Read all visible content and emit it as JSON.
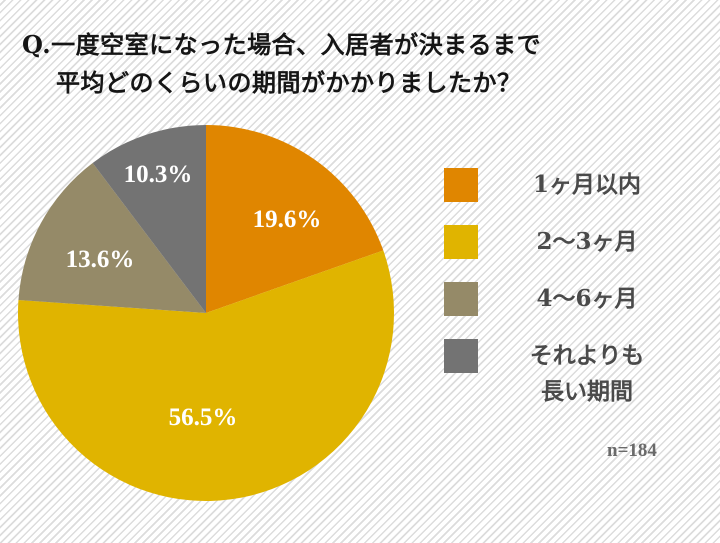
{
  "title": {
    "line1": "Q.一度空室になった場合、入居者が決まるまで",
    "line2": "平均どのくらいの期間がかかりましたか？"
  },
  "legend": [
    {
      "label": "1ヶ月以内",
      "color": "#E08600"
    },
    {
      "label": "2〜3ヶ月",
      "color": "#E0B400"
    },
    {
      "label": "4〜6ヶ月",
      "color": "#958A68"
    },
    {
      "label_line1": "それよりも",
      "label_line2": "長い期間",
      "color": "#737373"
    }
  ],
  "slice_labels": [
    "19.6%",
    "56.5%",
    "13.6%",
    "10.3%"
  ],
  "sample_note": "n=184",
  "chart_data": {
    "type": "pie",
    "title": "Q.一度空室になった場合、入居者が決まるまで平均どのくらいの期間がかかりましたか？",
    "categories": [
      "1ヶ月以内",
      "2〜3ヶ月",
      "4〜6ヶ月",
      "それよりも長い期間"
    ],
    "values": [
      19.6,
      56.5,
      13.6,
      10.3
    ],
    "unit": "%",
    "colors": [
      "#E08600",
      "#E0B400",
      "#958A68",
      "#737373"
    ],
    "start_angle": "12 o'clock, clockwise",
    "legend_position": "right",
    "n": 184
  }
}
